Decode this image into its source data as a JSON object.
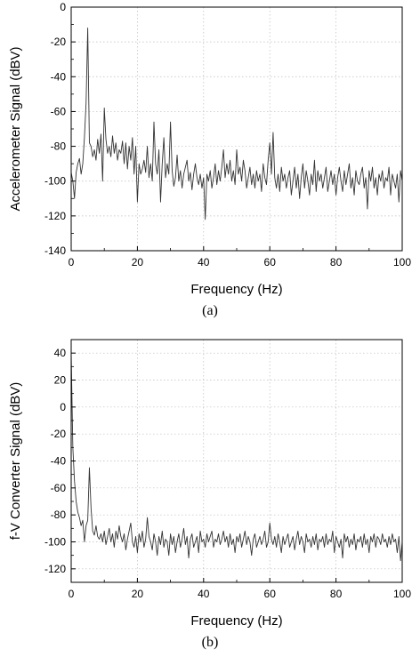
{
  "chart_data": [
    {
      "type": "line",
      "caption": "(a)",
      "xlabel": "Frequency (Hz)",
      "ylabel": "Accelerometer Signal (dBV)",
      "xlim": [
        0,
        100
      ],
      "ylim": [
        -140,
        0
      ],
      "xticks": [
        0,
        20,
        40,
        60,
        80,
        100
      ],
      "yticks": [
        -140,
        -120,
        -100,
        -80,
        -60,
        -40,
        -20,
        0
      ],
      "grid": true,
      "color": "#333333",
      "series": [
        {
          "x": [
            0,
            0.5,
            1,
            1.5,
            2,
            2.5,
            3,
            3.5,
            4,
            4.5,
            5,
            5.5,
            6,
            6.5,
            7,
            7.5,
            8,
            8.5,
            9,
            9.5,
            10,
            10.5,
            11,
            11.5,
            12,
            12.5,
            13,
            13.5,
            14,
            14.5,
            15,
            15.5,
            16,
            16.5,
            17,
            17.5,
            18,
            18.5,
            19,
            19.5,
            20,
            20.5,
            21,
            21.5,
            22,
            22.5,
            23,
            23.5,
            24,
            24.5,
            25,
            25.5,
            26,
            26.5,
            27,
            27.5,
            28,
            28.5,
            29,
            29.5,
            30,
            30.5,
            31,
            31.5,
            32,
            32.5,
            33,
            33.5,
            34,
            34.5,
            35,
            35.5,
            36,
            36.5,
            37,
            37.5,
            38,
            38.5,
            39,
            39.5,
            40,
            40.5,
            41,
            41.5,
            42,
            42.5,
            43,
            43.5,
            44,
            44.5,
            45,
            45.5,
            46,
            46.5,
            47,
            47.5,
            48,
            48.5,
            49,
            49.5,
            50,
            50.5,
            51,
            51.5,
            52,
            52.5,
            53,
            53.5,
            54,
            54.5,
            55,
            55.5,
            56,
            56.5,
            57,
            57.5,
            58,
            58.5,
            59,
            59.5,
            60,
            60.5,
            61,
            61.5,
            62,
            62.5,
            63,
            63.5,
            64,
            64.5,
            65,
            65.5,
            66,
            66.5,
            67,
            67.5,
            68,
            68.5,
            69,
            69.5,
            70,
            70.5,
            71,
            71.5,
            72,
            72.5,
            73,
            73.5,
            74,
            74.5,
            75,
            75.5,
            76,
            76.5,
            77,
            77.5,
            78,
            78.5,
            79,
            79.5,
            80,
            80.5,
            81,
            81.5,
            82,
            82.5,
            83,
            83.5,
            84,
            84.5,
            85,
            85.5,
            86,
            86.5,
            87,
            87.5,
            88,
            88.5,
            89,
            89.5,
            90,
            90.5,
            91,
            91.5,
            92,
            92.5,
            93,
            93.5,
            94,
            94.5,
            95,
            95.5,
            96,
            96.5,
            97,
            97.5,
            98,
            98.5,
            99,
            99.5,
            100
          ],
          "y": [
            -95,
            -100,
            -110,
            -95,
            -90,
            -87,
            -96,
            -90,
            -75,
            -55,
            -12,
            -78,
            -80,
            -86,
            -82,
            -88,
            -76,
            -84,
            -73,
            -100,
            -58,
            -76,
            -84,
            -80,
            -86,
            -74,
            -84,
            -78,
            -88,
            -82,
            -84,
            -77,
            -90,
            -78,
            -93,
            -80,
            -88,
            -75,
            -96,
            -80,
            -112,
            -90,
            -96,
            -93,
            -88,
            -95,
            -80,
            -98,
            -90,
            -100,
            -66,
            -90,
            -96,
            -82,
            -112,
            -90,
            -75,
            -98,
            -90,
            -96,
            -66,
            -94,
            -103,
            -98,
            -85,
            -100,
            -94,
            -104,
            -96,
            -92,
            -88,
            -100,
            -95,
            -105,
            -96,
            -90,
            -98,
            -102,
            -96,
            -104,
            -98,
            -122,
            -96,
            -100,
            -94,
            -104,
            -98,
            -90,
            -102,
            -94,
            -100,
            -92,
            -82,
            -98,
            -90,
            -96,
            -88,
            -100,
            -94,
            -102,
            -82,
            -96,
            -92,
            -100,
            -88,
            -94,
            -104,
            -98,
            -92,
            -102,
            -96,
            -104,
            -94,
            -100,
            -96,
            -106,
            -90,
            -98,
            -102,
            -88,
            -78,
            -96,
            -72,
            -98,
            -104,
            -96,
            -106,
            -92,
            -100,
            -96,
            -104,
            -98,
            -94,
            -108,
            -100,
            -92,
            -104,
            -96,
            -110,
            -98,
            -90,
            -104,
            -94,
            -100,
            -108,
            -96,
            -102,
            -88,
            -106,
            -94,
            -100,
            -96,
            -104,
            -98,
            -92,
            -106,
            -100,
            -94,
            -102,
            -96,
            -108,
            -98,
            -92,
            -100,
            -106,
            -94,
            -102,
            -96,
            -90,
            -104,
            -98,
            -108,
            -94,
            -100,
            -102,
            -96,
            -92,
            -104,
            -98,
            -116,
            -94,
            -100,
            -92,
            -104,
            -98,
            -108,
            -96,
            -100,
            -94,
            -104,
            -98,
            -100,
            -92,
            -108,
            -96,
            -100,
            -104,
            -96,
            -112,
            -94,
            -100
          ]
        }
      ]
    },
    {
      "type": "line",
      "caption": "(b)",
      "xlabel": "Frequency (Hz)",
      "ylabel": "f-V Converter Signal (dBV)",
      "xlim": [
        0,
        100
      ],
      "ylim": [
        -130,
        50
      ],
      "xticks": [
        0,
        20,
        40,
        60,
        80,
        100
      ],
      "yticks": [
        -120,
        -100,
        -80,
        -60,
        -40,
        -20,
        0,
        20,
        40
      ],
      "grid": true,
      "color": "#333333",
      "series": [
        {
          "x": [
            0,
            0.5,
            1,
            1.5,
            2,
            2.5,
            3,
            3.5,
            4,
            4.5,
            5,
            5.5,
            6,
            6.5,
            7,
            7.5,
            8,
            8.5,
            9,
            9.5,
            10,
            10.5,
            11,
            11.5,
            12,
            12.5,
            13,
            13.5,
            14,
            14.5,
            15,
            15.5,
            16,
            16.5,
            17,
            17.5,
            18,
            18.5,
            19,
            19.5,
            20,
            20.5,
            21,
            21.5,
            22,
            22.5,
            23,
            23.5,
            24,
            24.5,
            25,
            25.5,
            26,
            26.5,
            27,
            27.5,
            28,
            28.5,
            29,
            29.5,
            30,
            30.5,
            31,
            31.5,
            32,
            32.5,
            33,
            33.5,
            34,
            34.5,
            35,
            35.5,
            36,
            36.5,
            37,
            37.5,
            38,
            38.5,
            39,
            39.5,
            40,
            40.5,
            41,
            41.5,
            42,
            42.5,
            43,
            43.5,
            44,
            44.5,
            45,
            45.5,
            46,
            46.5,
            47,
            47.5,
            48,
            48.5,
            49,
            49.5,
            50,
            50.5,
            51,
            51.5,
            52,
            52.5,
            53,
            53.5,
            54,
            54.5,
            55,
            55.5,
            56,
            56.5,
            57,
            57.5,
            58,
            58.5,
            59,
            59.5,
            60,
            60.5,
            61,
            61.5,
            62,
            62.5,
            63,
            63.5,
            64,
            64.5,
            65,
            65.5,
            66,
            66.5,
            67,
            67.5,
            68,
            68.5,
            69,
            69.5,
            70,
            70.5,
            71,
            71.5,
            72,
            72.5,
            73,
            73.5,
            74,
            74.5,
            75,
            75.5,
            76,
            76.5,
            77,
            77.5,
            78,
            78.5,
            79,
            79.5,
            80,
            80.5,
            81,
            81.5,
            82,
            82.5,
            83,
            83.5,
            84,
            84.5,
            85,
            85.5,
            86,
            86.5,
            87,
            87.5,
            88,
            88.5,
            89,
            89.5,
            90,
            90.5,
            91,
            91.5,
            92,
            92.5,
            93,
            93.5,
            94,
            94.5,
            95,
            95.5,
            96,
            96.5,
            97,
            97.5,
            98,
            98.5,
            99,
            99.5,
            100
          ],
          "y": [
            40,
            -30,
            -55,
            -70,
            -78,
            -82,
            -88,
            -84,
            -100,
            -88,
            -84,
            -45,
            -75,
            -92,
            -95,
            -88,
            -96,
            -98,
            -94,
            -100,
            -92,
            -102,
            -96,
            -90,
            -100,
            -94,
            -104,
            -92,
            -98,
            -88,
            -96,
            -100,
            -94,
            -106,
            -98,
            -92,
            -86,
            -100,
            -104,
            -96,
            -108,
            -94,
            -100,
            -92,
            -104,
            -98,
            -82,
            -96,
            -100,
            -106,
            -94,
            -100,
            -110,
            -96,
            -102,
            -92,
            -104,
            -98,
            -100,
            -110,
            -94,
            -102,
            -96,
            -108,
            -100,
            -94,
            -104,
            -98,
            -90,
            -102,
            -96,
            -112,
            -98,
            -94,
            -104,
            -100,
            -96,
            -108,
            -92,
            -100,
            -98,
            -104,
            -94,
            -100,
            -96,
            -92,
            -104,
            -98,
            -100,
            -94,
            -102,
            -98,
            -92,
            -100,
            -96,
            -104,
            -94,
            -102,
            -98,
            -108,
            -96,
            -100,
            -94,
            -104,
            -98,
            -92,
            -102,
            -96,
            -100,
            -110,
            -98,
            -94,
            -104,
            -100,
            -96,
            -102,
            -98,
            -92,
            -104,
            -100,
            -86,
            -98,
            -102,
            -96,
            -104,
            -94,
            -100,
            -108,
            -96,
            -102,
            -98,
            -94,
            -104,
            -100,
            -96,
            -106,
            -98,
            -92,
            -102,
            -96,
            -100,
            -108,
            -94,
            -100,
            -98,
            -104,
            -96,
            -102,
            -94,
            -106,
            -98,
            -100,
            -96,
            -104,
            -94,
            -102,
            -98,
            -100,
            -92,
            -108,
            -96,
            -100,
            -104,
            -98,
            -112,
            -94,
            -100,
            -96,
            -104,
            -98,
            -102,
            -94,
            -106,
            -98,
            -100,
            -96,
            -104,
            -94,
            -102,
            -98,
            -108,
            -96,
            -100,
            -94,
            -104,
            -96,
            -98,
            -102,
            -94,
            -100,
            -98,
            -104,
            -96,
            -102,
            -94,
            -100,
            -98,
            -108,
            -96,
            -114,
            -100
          ]
        }
      ]
    }
  ]
}
